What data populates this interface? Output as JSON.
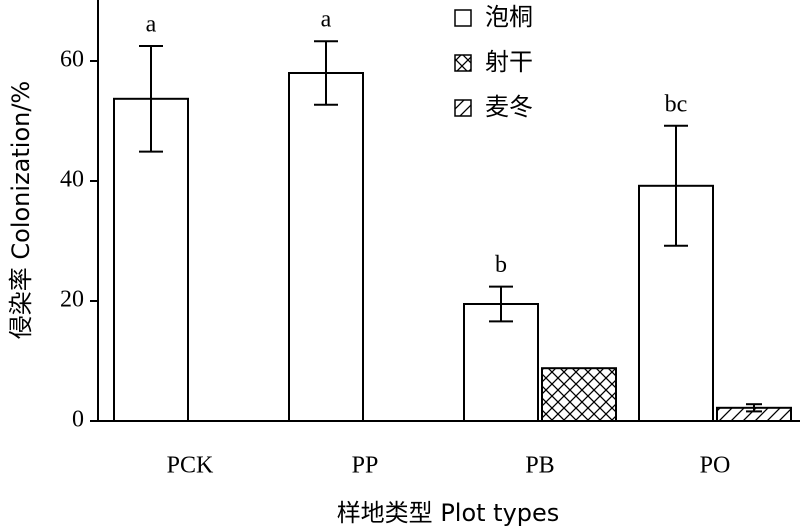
{
  "chart_data": {
    "type": "bar",
    "ylabel": "侵染率 Colonization/%",
    "xlabel": "样地类型 Plot types",
    "categories": [
      "PCK",
      "PP",
      "PB",
      "PO"
    ],
    "series": [
      {
        "name": "泡桐",
        "color": "#ffffff",
        "hatch": "none",
        "values": [
          53.7,
          58,
          19.5,
          39.2
        ],
        "errors": [
          8.8,
          5.3,
          2.9,
          10
        ],
        "letters": [
          "a",
          "a",
          "b",
          "bc"
        ]
      },
      {
        "name": "射干",
        "color": "#ffffff",
        "hatch": "cross",
        "values": [
          null,
          null,
          8.8,
          null
        ]
      },
      {
        "name": "麦冬",
        "color": "#ffffff",
        "hatch": "diagonal",
        "values": [
          null,
          null,
          null,
          2.2
        ],
        "errors": [
          null,
          null,
          null,
          0.6
        ]
      }
    ],
    "ylim": [
      0,
      70
    ],
    "yticks": [
      0,
      20,
      40,
      60
    ]
  }
}
